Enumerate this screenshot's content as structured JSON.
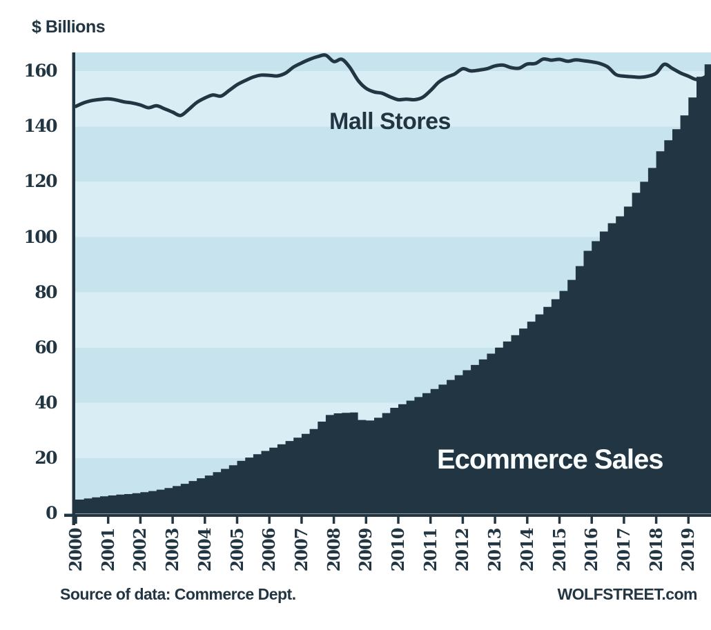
{
  "palette": {
    "ink": "#223542",
    "stripe_dark": "#c7e3ed",
    "stripe_light": "#d9edf5",
    "page_background": "#ffffff",
    "ecommerce_label_color": "#fafdfd"
  },
  "header": {
    "units_label": "$ Billions"
  },
  "labels": {
    "mall_series_label": "Mall Stores",
    "ecommerce_series_label": "Ecommerce Sales"
  },
  "footer": {
    "source": "Source of data: Commerce Dept.",
    "brand": "WOLFSTREET.com"
  },
  "chart_data": {
    "type": "combo",
    "title": "$ Billions",
    "xlabel": "",
    "ylabel": "$ Billions",
    "x_unit": "year",
    "data_frequency": "quarterly",
    "x_start": 2000.0,
    "x_step": 0.25,
    "xlim": [
      2000,
      2019.75
    ],
    "ylim": [
      0,
      166.8
    ],
    "grid": "striped-bands-every-20",
    "legend_position": "inline-annotations",
    "y_ticks": [
      0,
      20,
      40,
      60,
      80,
      100,
      120,
      140,
      160
    ],
    "x_ticks": [
      "2000",
      "2001",
      "2002",
      "2003",
      "2004",
      "2005",
      "2006",
      "2007",
      "2008",
      "2009",
      "2010",
      "2011",
      "2012",
      "2013",
      "2014",
      "2015",
      "2016",
      "2017",
      "2018",
      "2019"
    ],
    "series": [
      {
        "name": "Mall Stores",
        "type": "line",
        "color": "#223542",
        "stroke_width": 5,
        "values": [
          147.3,
          148.6,
          149.4,
          149.8,
          150.0,
          149.6,
          148.9,
          148.5,
          147.8,
          146.8,
          147.5,
          146.4,
          145.2,
          144.0,
          146.2,
          148.7,
          150.3,
          151.4,
          151.0,
          153.0,
          155.1,
          156.6,
          157.9,
          158.6,
          158.5,
          158.3,
          159.3,
          161.5,
          163.0,
          164.3,
          165.3,
          165.8,
          163.5,
          164.3,
          161.3,
          156.7,
          153.8,
          152.5,
          152.0,
          150.7,
          149.7,
          149.9,
          149.7,
          150.5,
          153.0,
          156.0,
          157.8,
          159.0,
          160.9,
          160.1,
          160.4,
          160.9,
          161.9,
          162.2,
          161.3,
          161.1,
          162.6,
          162.8,
          164.4,
          164.0,
          164.3,
          163.6,
          164.1,
          163.8,
          163.4,
          162.8,
          161.5,
          158.8,
          158.2,
          158.0,
          157.8,
          158.2,
          159.3,
          162.5,
          161.0,
          159.4,
          158.2,
          157.0,
          157.8,
          159.8
        ]
      },
      {
        "name": "Ecommerce Sales",
        "type": "step_area",
        "color": "#223542",
        "values": [
          5.0,
          5.4,
          5.8,
          6.2,
          6.5,
          6.8,
          7.0,
          7.3,
          7.7,
          8.1,
          8.6,
          9.2,
          9.9,
          10.7,
          11.7,
          12.7,
          13.7,
          14.9,
          16.1,
          17.4,
          19.0,
          20.2,
          21.4,
          22.6,
          23.8,
          25.0,
          26.2,
          27.4,
          28.8,
          30.5,
          33.2,
          35.6,
          36.2,
          36.4,
          36.5,
          33.8,
          33.6,
          34.6,
          36.3,
          38.2,
          39.5,
          40.8,
          42.1,
          43.5,
          45.0,
          46.6,
          48.3,
          50.0,
          51.8,
          53.7,
          55.7,
          57.8,
          60.0,
          62.2,
          64.5,
          66.9,
          69.4,
          72.0,
          74.7,
          77.5,
          80.5,
          84.5,
          89.5,
          95.0,
          98.5,
          102.0,
          105.0,
          107.5,
          111.0,
          116.0,
          120.0,
          125.0,
          131.0,
          135.0,
          139.0,
          144.0,
          150.5,
          158.0,
          162.5,
          165.0
        ]
      }
    ],
    "annotations": [
      {
        "text": "Mall Stores",
        "color": "#223542",
        "anchor": "over-line-center"
      },
      {
        "text": "Ecommerce Sales",
        "color": "#fafdfd",
        "anchor": "inside-area-lower-right"
      }
    ],
    "background_stripes": {
      "band_size": 20,
      "colors_bottom_up": [
        "#c7e3ed",
        "#d9edf5"
      ]
    }
  }
}
